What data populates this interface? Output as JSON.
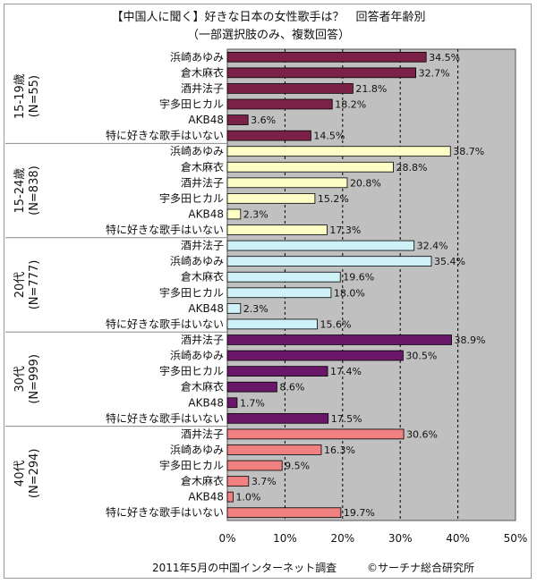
{
  "title": "【中国人に聞く】好きな日本の女性歌手は？　回答者年齢別",
  "subtitle": "（一部選択肢のみ、複数回答）",
  "footer_left": "2011年5月の中国インターネット調査",
  "footer_right": "©サーチナ総合研究所",
  "colors": {
    "plot_bg": "#c0c0c0",
    "groups": [
      "#7b2148",
      "#fdfdc6",
      "#cef2f7",
      "#6a1669",
      "#f18080"
    ]
  },
  "chart_data": {
    "type": "bar",
    "orientation": "horizontal",
    "xlim": [
      0,
      50
    ],
    "xticks": [
      "0%",
      "10%",
      "20%",
      "30%",
      "40%",
      "50%"
    ],
    "grid": true,
    "groups": [
      {
        "label_lines": [
          "15-19歳",
          "(N=55)"
        ],
        "categories": [
          "浜崎あゆみ",
          "倉木麻衣",
          "酒井法子",
          "宇多田ヒカル",
          "AKB48",
          "特に好きな歌手はいない"
        ],
        "values": [
          34.5,
          32.7,
          21.8,
          18.2,
          3.6,
          14.5
        ],
        "value_labels": [
          "34.5%",
          "32.7%",
          "21.8%",
          "18.2%",
          "3.6%",
          "14.5%"
        ]
      },
      {
        "label_lines": [
          "15-24歳",
          "(N=838)"
        ],
        "categories": [
          "浜崎あゆみ",
          "倉木麻衣",
          "酒井法子",
          "宇多田ヒカル",
          "AKB48",
          "特に好きな歌手はいない"
        ],
        "values": [
          38.7,
          28.8,
          20.8,
          15.2,
          2.3,
          17.3
        ],
        "value_labels": [
          "38.7%",
          "28.8%",
          "20.8%",
          "15.2%",
          "2.3%",
          "17.3%"
        ]
      },
      {
        "label_lines": [
          "20代",
          "(N=777)"
        ],
        "categories": [
          "酒井法子",
          "浜崎あゆみ",
          "倉木麻衣",
          "宇多田ヒカル",
          "AKB48",
          "特に好きな歌手はいない"
        ],
        "values": [
          32.4,
          35.4,
          19.6,
          18.0,
          2.3,
          15.6
        ],
        "value_labels": [
          "32.4%",
          "35.4%",
          "19.6%",
          "18.0%",
          "2.3%",
          "15.6%"
        ]
      },
      {
        "label_lines": [
          "30代",
          "(N=999)"
        ],
        "categories": [
          "酒井法子",
          "浜崎あゆみ",
          "宇多田ヒカル",
          "倉木麻衣",
          "AKB48",
          "特に好きな歌手はいない"
        ],
        "values": [
          38.9,
          30.5,
          17.4,
          8.6,
          1.7,
          17.5
        ],
        "value_labels": [
          "38.9%",
          "30.5%",
          "17.4%",
          "8.6%",
          "1.7%",
          "17.5%"
        ]
      },
      {
        "label_lines": [
          "40代",
          "(N=294)"
        ],
        "categories": [
          "酒井法子",
          "浜崎あゆみ",
          "宇多田ヒカル",
          "倉木麻衣",
          "AKB48",
          "特に好きな歌手はいない"
        ],
        "values": [
          30.6,
          16.3,
          9.5,
          3.7,
          1.0,
          19.7
        ],
        "value_labels": [
          "30.6%",
          "16.3%",
          "9.5%",
          "3.7%",
          "1.0%",
          "19.7%"
        ]
      }
    ]
  }
}
